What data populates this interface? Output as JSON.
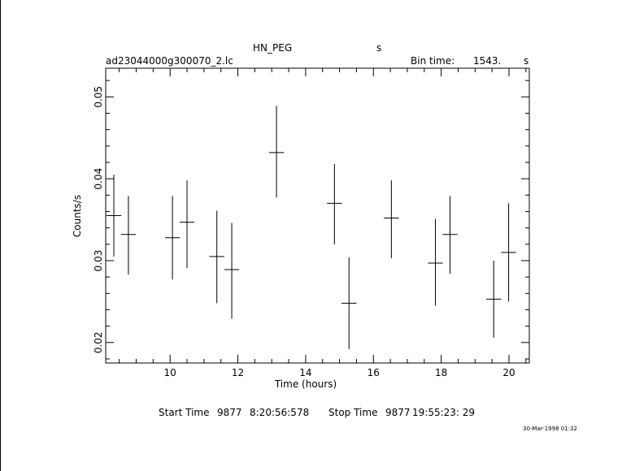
{
  "header": {
    "object": "HN_PEG",
    "object_unit": "s",
    "filename": "ad23044000g300070_2.lc",
    "bin_time_label": "Bin time:",
    "bin_time_value": "1543.",
    "bin_time_unit": "s"
  },
  "footer": {
    "start_label": "Start Time",
    "start_day": "9877",
    "start_time": "8:20:56:578",
    "stop_label": "Stop Time",
    "stop_day": "9877",
    "stop_time": "19:55:23: 29",
    "timestamp": "30-Mar-1998 01:32"
  },
  "chart_data": {
    "type": "scatter",
    "title": "HN_PEG",
    "xlabel": "Time (hours)",
    "ylabel": "Counts/s",
    "xlim": [
      8.1,
      20.6
    ],
    "ylim": [
      0.0175,
      0.0535
    ],
    "x_ticks": [
      10,
      12,
      14,
      16,
      18,
      20
    ],
    "y_ticks": [
      0.02,
      0.03,
      0.04,
      0.05
    ],
    "x_tick_labels": [
      "10",
      "12",
      "14",
      "16",
      "18",
      "20"
    ],
    "y_tick_labels": [
      "0.02",
      "0.03",
      "0.04",
      "0.05"
    ],
    "grid": false,
    "points": [
      {
        "x": 8.34,
        "y": 0.0355,
        "xerr": 0.22,
        "ylo": 0.0305,
        "yhi": 0.0405
      },
      {
        "x": 8.77,
        "y": 0.0332,
        "xerr": 0.22,
        "ylo": 0.0283,
        "yhi": 0.0379
      },
      {
        "x": 10.07,
        "y": 0.0328,
        "xerr": 0.22,
        "ylo": 0.0277,
        "yhi": 0.0379
      },
      {
        "x": 10.5,
        "y": 0.0347,
        "xerr": 0.22,
        "ylo": 0.0291,
        "yhi": 0.0398
      },
      {
        "x": 11.38,
        "y": 0.0305,
        "xerr": 0.22,
        "ylo": 0.0248,
        "yhi": 0.0361
      },
      {
        "x": 11.82,
        "y": 0.0289,
        "xerr": 0.22,
        "ylo": 0.0229,
        "yhi": 0.0346
      },
      {
        "x": 13.14,
        "y": 0.0432,
        "xerr": 0.22,
        "ylo": 0.0377,
        "yhi": 0.0489
      },
      {
        "x": 14.85,
        "y": 0.037,
        "xerr": 0.22,
        "ylo": 0.032,
        "yhi": 0.0418
      },
      {
        "x": 15.28,
        "y": 0.0248,
        "xerr": 0.22,
        "ylo": 0.0192,
        "yhi": 0.0304
      },
      {
        "x": 16.53,
        "y": 0.0352,
        "xerr": 0.22,
        "ylo": 0.0303,
        "yhi": 0.0398
      },
      {
        "x": 17.83,
        "y": 0.0297,
        "xerr": 0.22,
        "ylo": 0.0245,
        "yhi": 0.0351
      },
      {
        "x": 18.26,
        "y": 0.0332,
        "xerr": 0.22,
        "ylo": 0.0284,
        "yhi": 0.0379
      },
      {
        "x": 19.55,
        "y": 0.0253,
        "xerr": 0.22,
        "ylo": 0.0206,
        "yhi": 0.03
      },
      {
        "x": 19.99,
        "y": 0.031,
        "xerr": 0.22,
        "ylo": 0.025,
        "yhi": 0.037
      }
    ]
  }
}
